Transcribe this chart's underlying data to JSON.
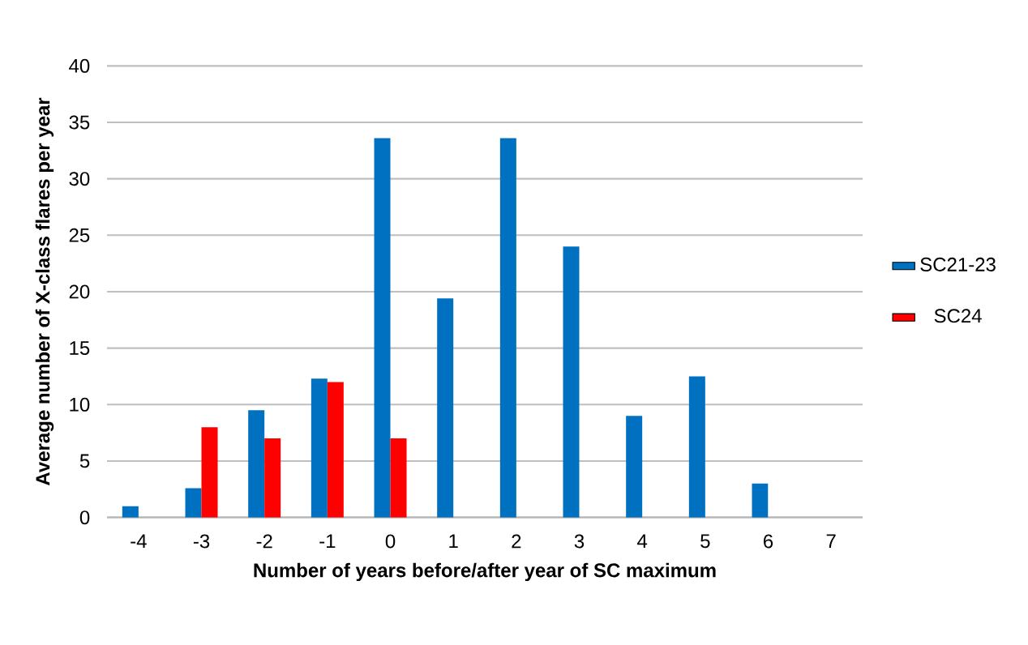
{
  "chart_data": {
    "type": "bar",
    "xlabel": "Number of years before/after year of SC maximum",
    "ylabel": "Average number of X-class flares per year",
    "categories": [
      "-4",
      "-3",
      "-2",
      "-1",
      "0",
      "1",
      "2",
      "3",
      "4",
      "5",
      "6",
      "7"
    ],
    "series": [
      {
        "name": "SC21-23",
        "color": "#0070c0",
        "values": [
          1,
          2.6,
          9.5,
          12.3,
          33.6,
          19.4,
          33.6,
          24,
          9,
          12.5,
          3,
          null
        ]
      },
      {
        "name": "SC24",
        "color": "#ff0000",
        "values": [
          null,
          8,
          7,
          12,
          7,
          null,
          null,
          null,
          null,
          null,
          null,
          null
        ]
      }
    ],
    "ylim": [
      0,
      40
    ],
    "yticks": [
      0,
      5,
      10,
      15,
      20,
      25,
      30,
      35,
      40
    ],
    "grid": "y",
    "legend": "right"
  }
}
